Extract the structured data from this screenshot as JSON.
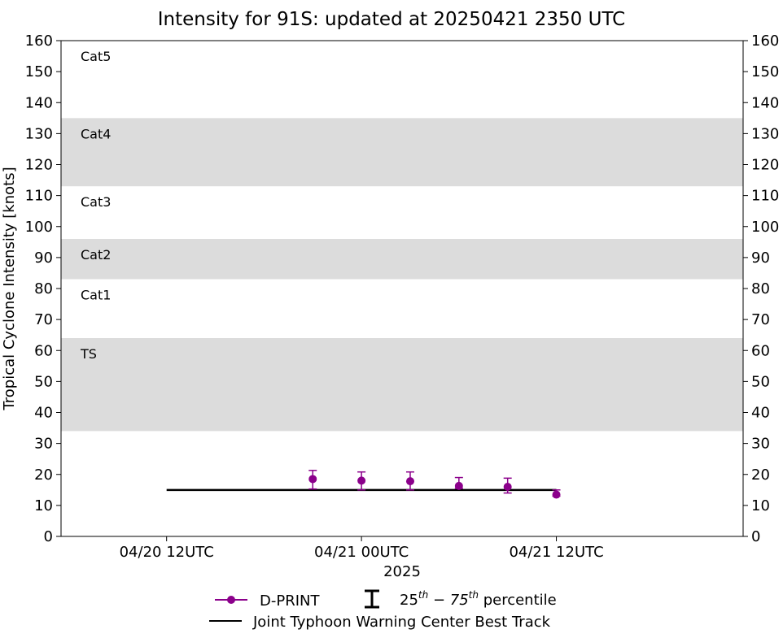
{
  "chart_data": {
    "type": "scatter",
    "title": "Intensity for 91S: updated at 20250421 2350 UTC",
    "xlabel": "2025",
    "ylabel": "Tropical Cyclone Intensity [knots]",
    "ylim": [
      0,
      160
    ],
    "yticks": [
      0,
      10,
      20,
      30,
      40,
      50,
      60,
      70,
      80,
      90,
      100,
      110,
      120,
      130,
      140,
      150,
      160
    ],
    "xlim_hours": [
      -18.5,
      23.5
    ],
    "xticks": [
      {
        "hours": -12,
        "label": "04/20 12UTC"
      },
      {
        "hours": 0,
        "label": "04/21 00UTC"
      },
      {
        "hours": 12,
        "label": "04/21 12UTC"
      }
    ],
    "category_bands": [
      {
        "label": "TS",
        "low": 34,
        "high": 64,
        "shaded": true
      },
      {
        "label": "Cat1",
        "low": 64,
        "high": 83,
        "shaded": false
      },
      {
        "label": "Cat2",
        "low": 83,
        "high": 96,
        "shaded": true
      },
      {
        "label": "Cat3",
        "low": 96,
        "high": 113,
        "shaded": false
      },
      {
        "label": "Cat4",
        "low": 113,
        "high": 135,
        "shaded": true
      },
      {
        "label": "Cat5",
        "low": 135,
        "high": 160,
        "shaded": false
      }
    ],
    "series": [
      {
        "name": "D-PRINT",
        "color": "#8b008b",
        "points": [
          {
            "hours": -3,
            "value": 18.5,
            "p25": 15.3,
            "p75": 21.3
          },
          {
            "hours": 0,
            "value": 18.0,
            "p25": 15.0,
            "p75": 20.8
          },
          {
            "hours": 3,
            "value": 17.8,
            "p25": 15.0,
            "p75": 20.8
          },
          {
            "hours": 6,
            "value": 16.3,
            "p25": 15.5,
            "p75": 19.0
          },
          {
            "hours": 9,
            "value": 16.0,
            "p25": 14.0,
            "p75": 18.8
          },
          {
            "hours": 12,
            "value": 13.5,
            "p25": 13.0,
            "p75": 15.0
          }
        ]
      },
      {
        "name": "Joint Typhoon Warning Center Best Track",
        "color": "#000000",
        "line": [
          {
            "hours": -12,
            "value": 15
          },
          {
            "hours": 12,
            "value": 15
          }
        ]
      }
    ],
    "legend": {
      "placement": "bottom-center",
      "dprint_label": "D-PRINT",
      "percentile_label_base1": "25",
      "percentile_label_sup1": "th",
      "percentile_label_mid": " − 75",
      "percentile_label_sup2": "th",
      "percentile_label_tail": " percentile",
      "best_track_label": "Joint Typhoon Warning Center Best Track"
    },
    "colors": {
      "band": "#dcdcdc",
      "dprint": "#8b008b",
      "best_track": "#000000"
    }
  }
}
